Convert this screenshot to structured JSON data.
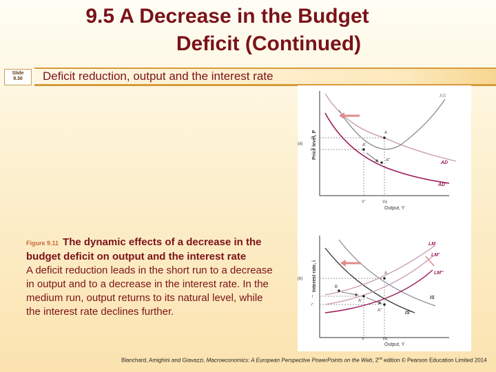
{
  "title": {
    "line1": "9.5  A Decrease in the Budget",
    "line2": "Deficit (Continued)"
  },
  "slide": {
    "label": "Slide",
    "number": "9.30"
  },
  "subtitle": "Deficit reduction, output and the interest rate",
  "caption": {
    "figure_number": "Figure 9.11",
    "title": "The dynamic effects of a decrease in the budget deficit on output and the interest rate",
    "body": "A deficit reduction leads in the short run to a decrease in output and to a decrease in the interest rate. In the medium run, output returns to its natural level, while the interest rate declines further."
  },
  "footer": {
    "authors": "Blanchard, Amighini and Giavazzi, ",
    "book": "Macroeconomics: A European Perspective PowerPoints on the Web",
    "edition_pre": ", 2",
    "edition_sup": "nd",
    "rest": " edition © Pearson Education Limited 2014"
  },
  "panel_a": {
    "tag": "(a)",
    "ylabel": "Price level, P",
    "xlabel": "Output, Y",
    "curves": {
      "as": "AS",
      "ad": "AD",
      "ad2": "AD'"
    },
    "points": {
      "a": "A",
      "a1": "A'",
      "a2": "A''"
    },
    "yticks": {
      "p": "P",
      "p2": "P''"
    },
    "xticks": {
      "y1": "Y'",
      "yn": "Yn"
    }
  },
  "panel_b": {
    "tag": "(b)",
    "ylabel": "Interest rate, i",
    "xlabel": "Output, Y",
    "curves": {
      "lm": "LM",
      "lm1": "LM'",
      "lm2": "LM''",
      "is": "IS",
      "is2": "IS'"
    },
    "points": {
      "a": "A",
      "b": "B",
      "a1": "A'",
      "a2": "A''"
    },
    "yticks": {
      "i": "i",
      "i1": "i'",
      "i2": "i''"
    },
    "xticks": {
      "y1": "Y'",
      "yn": "Yn"
    }
  },
  "colors": {
    "title": "#7a1218",
    "ad_curve": "#9b1a5a",
    "as_curve": "#8f8f99",
    "shift_arrow": "#e08a8a"
  }
}
